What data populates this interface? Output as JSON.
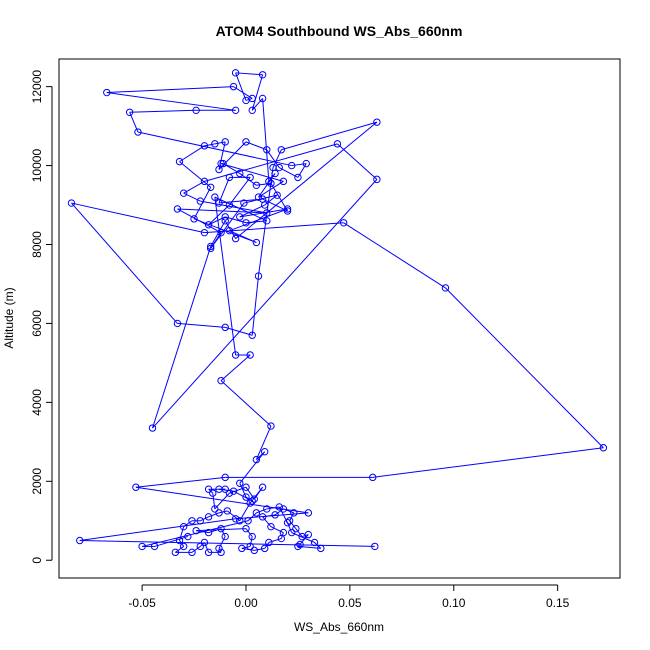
{
  "chart_data": {
    "type": "line",
    "title": "ATOM4 Southbound WS_Abs_660nm",
    "xlabel": "WS_Abs_660nm",
    "ylabel": "Altitude (m)",
    "xlim": [
      -0.09,
      0.18
    ],
    "ylim": [
      -450,
      12700
    ],
    "x_ticks": [
      -0.05,
      0.0,
      0.05,
      0.1,
      0.15
    ],
    "x_tick_labels": [
      "-0.05",
      "0.00",
      "0.05",
      "0.10",
      "0.15"
    ],
    "y_ticks": [
      0,
      2000,
      4000,
      6000,
      8000,
      10000,
      12000
    ],
    "y_tick_labels": [
      "0",
      "2000",
      "4000",
      "6000",
      "8000",
      "10000",
      "12000"
    ],
    "grid": false,
    "series": [
      {
        "color": "#0000ff",
        "marker": "open-circle",
        "points": [
          [
            0.062,
            350
          ],
          [
            -0.08,
            500
          ],
          [
            -0.005,
            1050
          ],
          [
            0.03,
            1200
          ],
          [
            -0.053,
            1850
          ],
          [
            -0.01,
            2100
          ],
          [
            0.061,
            2100
          ],
          [
            0.172,
            2850
          ],
          [
            0.096,
            6900
          ],
          [
            0.047,
            8550
          ],
          [
            -0.02,
            8300
          ],
          [
            -0.084,
            9050
          ],
          [
            -0.033,
            6000
          ],
          [
            -0.01,
            5900
          ],
          [
            0.003,
            5700
          ],
          [
            0.006,
            7200
          ],
          [
            0.013,
            9950
          ],
          [
            0.017,
            10400
          ],
          [
            0.063,
            11100
          ],
          [
            -0.005,
            8150
          ],
          [
            -0.01,
            8600
          ],
          [
            -0.017,
            7950
          ],
          [
            -0.045,
            3350
          ],
          [
            0.063,
            9650
          ],
          [
            0.044,
            10550
          ],
          [
            -0.02,
            9600
          ],
          [
            -0.03,
            9300
          ],
          [
            -0.022,
            9100
          ],
          [
            0.01,
            8800
          ],
          [
            -0.033,
            8900
          ],
          [
            -0.012,
            8300
          ],
          [
            -0.017,
            7900
          ],
          [
            -0.001,
            9050
          ],
          [
            0.015,
            9250
          ],
          [
            0.009,
            9000
          ],
          [
            -0.003,
            8700
          ],
          [
            0.02,
            8900
          ],
          [
            -0.008,
            8350
          ],
          [
            0.005,
            8050
          ],
          [
            -0.025,
            8650
          ],
          [
            -0.017,
            9450
          ],
          [
            -0.032,
            10100
          ],
          [
            -0.02,
            10500
          ],
          [
            -0.015,
            10550
          ],
          [
            -0.01,
            10600
          ],
          [
            -0.013,
            9900
          ],
          [
            0.0,
            10600
          ],
          [
            0.01,
            10400
          ],
          [
            0.016,
            9950
          ],
          [
            0.025,
            9700
          ],
          [
            0.029,
            10050
          ],
          [
            0.022,
            10000
          ],
          [
            -0.052,
            10850
          ],
          [
            -0.056,
            11350
          ],
          [
            -0.024,
            11400
          ],
          [
            -0.005,
            11400
          ],
          [
            -0.067,
            11850
          ],
          [
            -0.006,
            12000
          ],
          [
            0.003,
            11700
          ],
          [
            0.0,
            11650
          ],
          [
            -0.005,
            12350
          ],
          [
            0.008,
            12300
          ],
          [
            0.003,
            11400
          ],
          [
            0.008,
            11700
          ],
          [
            0.011,
            9600
          ],
          [
            0.014,
            9800
          ],
          [
            0.006,
            9200
          ],
          [
            0.018,
            9600
          ],
          [
            -0.012,
            10050
          ],
          [
            -0.011,
            10050
          ],
          [
            -0.003,
            9800
          ],
          [
            0.005,
            9500
          ],
          [
            0.012,
            9550
          ],
          [
            0.02,
            8850
          ],
          [
            0.008,
            9150
          ],
          [
            -0.013,
            9050
          ],
          [
            -0.008,
            9700
          ],
          [
            0.002,
            9700
          ],
          [
            -0.008,
            9000
          ],
          [
            -0.018,
            8500
          ],
          [
            -0.01,
            8700
          ],
          [
            0.0,
            8550
          ],
          [
            0.01,
            8600
          ],
          [
            -0.015,
            9200
          ],
          [
            -0.005,
            5200
          ],
          [
            0.002,
            5200
          ],
          [
            -0.012,
            4550
          ],
          [
            0.012,
            3400
          ],
          [
            0.005,
            2550
          ],
          [
            0.009,
            2750
          ],
          [
            -0.003,
            1950
          ],
          [
            0.0,
            1600
          ],
          [
            0.003,
            1500
          ],
          [
            -0.006,
            1750
          ],
          [
            -0.013,
            1800
          ],
          [
            -0.01,
            1800
          ],
          [
            -0.018,
            1800
          ],
          [
            -0.016,
            1700
          ],
          [
            -0.015,
            1300
          ],
          [
            -0.008,
            1700
          ],
          [
            0.0,
            1850
          ],
          [
            0.004,
            1550
          ],
          [
            0.008,
            1850
          ],
          [
            0.002,
            1450
          ],
          [
            -0.003,
            1000
          ],
          [
            -0.009,
            1250
          ],
          [
            -0.013,
            1200
          ],
          [
            -0.018,
            1100
          ],
          [
            -0.022,
            1000
          ],
          [
            -0.026,
            1000
          ],
          [
            -0.03,
            850
          ],
          [
            -0.032,
            500
          ],
          [
            -0.03,
            350
          ],
          [
            -0.034,
            200
          ],
          [
            -0.026,
            200
          ],
          [
            -0.022,
            350
          ],
          [
            -0.02,
            450
          ],
          [
            -0.018,
            200
          ],
          [
            -0.012,
            200
          ],
          [
            -0.013,
            300
          ],
          [
            -0.01,
            600
          ],
          [
            -0.012,
            800
          ],
          [
            -0.018,
            700
          ],
          [
            -0.024,
            750
          ],
          [
            0.0,
            800
          ],
          [
            0.003,
            600
          ],
          [
            0.002,
            350
          ],
          [
            -0.002,
            300
          ],
          [
            0.004,
            250
          ],
          [
            0.009,
            300
          ],
          [
            0.011,
            450
          ],
          [
            0.017,
            550
          ],
          [
            0.018,
            700
          ],
          [
            0.012,
            850
          ],
          [
            0.008,
            1100
          ],
          [
            0.014,
            1150
          ],
          [
            0.018,
            1300
          ],
          [
            0.023,
            1200
          ],
          [
            0.021,
            1000
          ],
          [
            0.024,
            800
          ],
          [
            0.027,
            600
          ],
          [
            0.03,
            650
          ],
          [
            0.026,
            400
          ],
          [
            0.025,
            350
          ],
          [
            0.036,
            300
          ],
          [
            0.033,
            450
          ],
          [
            0.022,
            700
          ],
          [
            0.02,
            950
          ],
          [
            0.016,
            1350
          ],
          [
            0.01,
            1300
          ],
          [
            0.005,
            1200
          ],
          [
            0.001,
            1000
          ],
          [
            -0.05,
            350
          ],
          [
            -0.044,
            350
          ],
          [
            -0.028,
            600
          ]
        ]
      }
    ]
  }
}
